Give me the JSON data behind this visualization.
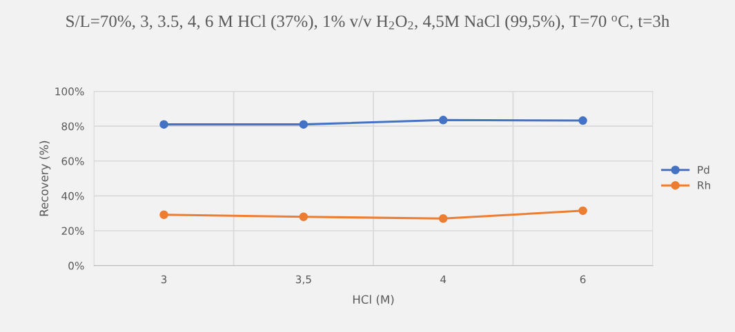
{
  "chart_data": {
    "type": "line",
    "title": "S/L=70%, 3, 3.5, 4, 6 M HCl (37%), 1% v/v H$_{2}$O$_{2}$, 4,5M NaCl (99,5%), T=70 $^{o}$C, t=3h",
    "xlabel": "HCl (M)",
    "ylabel": "Recovery (%)",
    "categories": [
      "3",
      "3,5",
      "4",
      "6"
    ],
    "series": [
      {
        "name": "Pd",
        "color": "#4472c4",
        "values": [
          81,
          81,
          83.5,
          83.2
        ]
      },
      {
        "name": "Rh",
        "color": "#ed7d31",
        "values": [
          29.2,
          28,
          27,
          31.5
        ]
      }
    ],
    "ylim": [
      0,
      100
    ],
    "yticks": [
      {
        "value": 0,
        "label": "0%"
      },
      {
        "value": 20,
        "label": "20%"
      },
      {
        "value": 40,
        "label": "40%"
      },
      {
        "value": 60,
        "label": "60%"
      },
      {
        "value": 80,
        "label": "80%"
      },
      {
        "value": 100,
        "label": "100%"
      }
    ],
    "grid": true,
    "legend": "right",
    "marker": "circle",
    "line_style": "solid"
  }
}
